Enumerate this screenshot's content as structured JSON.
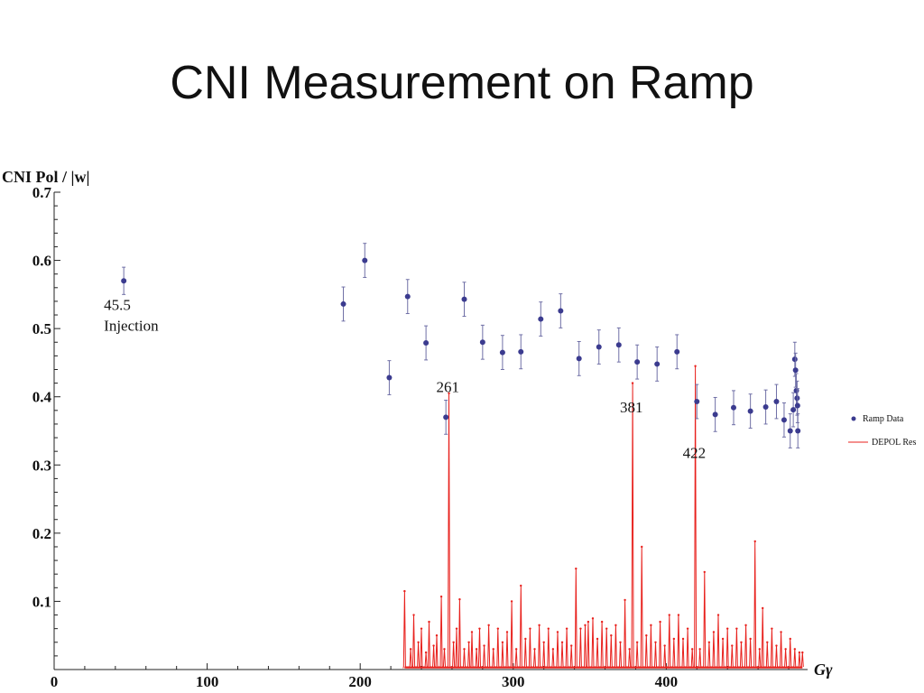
{
  "slide": {
    "title": "CNI Measurement on Ramp"
  },
  "chart_data": {
    "type": "scatter",
    "title": "CNI Measurement on Ramp",
    "ylabel": "CNI Pol / |w|",
    "xlabel": "Gγ",
    "xlim": [
      0,
      490
    ],
    "ylim": [
      0,
      0.7
    ],
    "x_ticks": [
      0,
      100,
      200,
      300,
      400
    ],
    "y_ticks": [
      0.1,
      0.2,
      0.3,
      0.4,
      0.5,
      0.6,
      0.7
    ],
    "y_tick_labels": [
      "0.1",
      "0.2",
      "0.3",
      "0.4",
      "0.5",
      "0.6",
      "0.7"
    ],
    "legend": [
      {
        "name": "Ramp Data",
        "marker": "dot",
        "color": "#3b3b8f"
      },
      {
        "name": "DEPOL Res",
        "marker": "line",
        "color": "#e8201c"
      }
    ],
    "series": [
      {
        "name": "Ramp Data",
        "color": "#3b3b8f",
        "points": [
          {
            "x": 45.5,
            "y": 0.57,
            "err": 0.02
          },
          {
            "x": 189,
            "y": 0.536,
            "err": 0.025
          },
          {
            "x": 203,
            "y": 0.6,
            "err": 0.025
          },
          {
            "x": 219,
            "y": 0.428,
            "err": 0.025
          },
          {
            "x": 231,
            "y": 0.547,
            "err": 0.025
          },
          {
            "x": 243,
            "y": 0.479,
            "err": 0.025
          },
          {
            "x": 256,
            "y": 0.37,
            "err": 0.025
          },
          {
            "x": 268,
            "y": 0.543,
            "err": 0.025
          },
          {
            "x": 280,
            "y": 0.48,
            "err": 0.025
          },
          {
            "x": 293,
            "y": 0.465,
            "err": 0.025
          },
          {
            "x": 305,
            "y": 0.466,
            "err": 0.025
          },
          {
            "x": 318,
            "y": 0.514,
            "err": 0.025
          },
          {
            "x": 331,
            "y": 0.526,
            "err": 0.025
          },
          {
            "x": 343,
            "y": 0.456,
            "err": 0.025
          },
          {
            "x": 356,
            "y": 0.473,
            "err": 0.025
          },
          {
            "x": 369,
            "y": 0.476,
            "err": 0.025
          },
          {
            "x": 381,
            "y": 0.451,
            "err": 0.025
          },
          {
            "x": 394,
            "y": 0.448,
            "err": 0.025
          },
          {
            "x": 407,
            "y": 0.466,
            "err": 0.025
          },
          {
            "x": 420,
            "y": 0.393,
            "err": 0.025
          },
          {
            "x": 432,
            "y": 0.374,
            "err": 0.025
          },
          {
            "x": 444,
            "y": 0.384,
            "err": 0.025
          },
          {
            "x": 455,
            "y": 0.379,
            "err": 0.025
          },
          {
            "x": 465,
            "y": 0.385,
            "err": 0.025
          },
          {
            "x": 472,
            "y": 0.393,
            "err": 0.025
          },
          {
            "x": 477,
            "y": 0.366,
            "err": 0.025
          },
          {
            "x": 481,
            "y": 0.35,
            "err": 0.025
          },
          {
            "x": 483,
            "y": 0.381,
            "err": 0.025
          },
          {
            "x": 484,
            "y": 0.455,
            "err": 0.025
          },
          {
            "x": 484.5,
            "y": 0.439,
            "err": 0.025
          },
          {
            "x": 485,
            "y": 0.409,
            "err": 0.025
          },
          {
            "x": 485.5,
            "y": 0.398,
            "err": 0.025
          },
          {
            "x": 485.8,
            "y": 0.387,
            "err": 0.025
          },
          {
            "x": 486,
            "y": 0.35,
            "err": 0.025
          }
        ]
      },
      {
        "name": "DEPOL Res",
        "color": "#e8201c",
        "spikes": [
          {
            "x": 229,
            "y": 0.115
          },
          {
            "x": 233,
            "y": 0.03
          },
          {
            "x": 235,
            "y": 0.08
          },
          {
            "x": 238,
            "y": 0.04
          },
          {
            "x": 240,
            "y": 0.06
          },
          {
            "x": 243,
            "y": 0.025
          },
          {
            "x": 245,
            "y": 0.07
          },
          {
            "x": 248,
            "y": 0.035
          },
          {
            "x": 250,
            "y": 0.05
          },
          {
            "x": 253,
            "y": 0.107
          },
          {
            "x": 255,
            "y": 0.03
          },
          {
            "x": 258,
            "y": 0.405
          },
          {
            "x": 261,
            "y": 0.04
          },
          {
            "x": 263,
            "y": 0.06
          },
          {
            "x": 265,
            "y": 0.103
          },
          {
            "x": 268,
            "y": 0.03
          },
          {
            "x": 271,
            "y": 0.04
          },
          {
            "x": 273,
            "y": 0.055
          },
          {
            "x": 276,
            "y": 0.03
          },
          {
            "x": 278,
            "y": 0.06
          },
          {
            "x": 281,
            "y": 0.035
          },
          {
            "x": 284,
            "y": 0.065
          },
          {
            "x": 287,
            "y": 0.03
          },
          {
            "x": 290,
            "y": 0.06
          },
          {
            "x": 293,
            "y": 0.04
          },
          {
            "x": 296,
            "y": 0.055
          },
          {
            "x": 299,
            "y": 0.1
          },
          {
            "x": 302,
            "y": 0.03
          },
          {
            "x": 305,
            "y": 0.123
          },
          {
            "x": 308,
            "y": 0.045
          },
          {
            "x": 311,
            "y": 0.06
          },
          {
            "x": 314,
            "y": 0.03
          },
          {
            "x": 317,
            "y": 0.065
          },
          {
            "x": 320,
            "y": 0.04
          },
          {
            "x": 323,
            "y": 0.06
          },
          {
            "x": 326,
            "y": 0.03
          },
          {
            "x": 329,
            "y": 0.055
          },
          {
            "x": 332,
            "y": 0.04
          },
          {
            "x": 335,
            "y": 0.06
          },
          {
            "x": 338,
            "y": 0.035
          },
          {
            "x": 341,
            "y": 0.148
          },
          {
            "x": 344,
            "y": 0.06
          },
          {
            "x": 347,
            "y": 0.065
          },
          {
            "x": 349,
            "y": 0.07
          },
          {
            "x": 352,
            "y": 0.075
          },
          {
            "x": 355,
            "y": 0.045
          },
          {
            "x": 358,
            "y": 0.07
          },
          {
            "x": 361,
            "y": 0.06
          },
          {
            "x": 364,
            "y": 0.05
          },
          {
            "x": 367,
            "y": 0.065
          },
          {
            "x": 370,
            "y": 0.04
          },
          {
            "x": 373,
            "y": 0.102
          },
          {
            "x": 376,
            "y": 0.03
          },
          {
            "x": 378,
            "y": 0.42
          },
          {
            "x": 381,
            "y": 0.04
          },
          {
            "x": 384,
            "y": 0.18
          },
          {
            "x": 387,
            "y": 0.05
          },
          {
            "x": 390,
            "y": 0.065
          },
          {
            "x": 393,
            "y": 0.04
          },
          {
            "x": 396,
            "y": 0.07
          },
          {
            "x": 399,
            "y": 0.035
          },
          {
            "x": 402,
            "y": 0.08
          },
          {
            "x": 405,
            "y": 0.045
          },
          {
            "x": 408,
            "y": 0.08
          },
          {
            "x": 411,
            "y": 0.045
          },
          {
            "x": 414,
            "y": 0.06
          },
          {
            "x": 417,
            "y": 0.03
          },
          {
            "x": 419,
            "y": 0.445
          },
          {
            "x": 422,
            "y": 0.03
          },
          {
            "x": 425,
            "y": 0.143
          },
          {
            "x": 428,
            "y": 0.04
          },
          {
            "x": 431,
            "y": 0.055
          },
          {
            "x": 434,
            "y": 0.08
          },
          {
            "x": 437,
            "y": 0.045
          },
          {
            "x": 440,
            "y": 0.06
          },
          {
            "x": 443,
            "y": 0.035
          },
          {
            "x": 446,
            "y": 0.06
          },
          {
            "x": 449,
            "y": 0.04
          },
          {
            "x": 452,
            "y": 0.065
          },
          {
            "x": 455,
            "y": 0.045
          },
          {
            "x": 458,
            "y": 0.188
          },
          {
            "x": 461,
            "y": 0.03
          },
          {
            "x": 463,
            "y": 0.09
          },
          {
            "x": 466,
            "y": 0.04
          },
          {
            "x": 469,
            "y": 0.06
          },
          {
            "x": 472,
            "y": 0.035
          },
          {
            "x": 475,
            "y": 0.055
          },
          {
            "x": 478,
            "y": 0.03
          },
          {
            "x": 481,
            "y": 0.045
          },
          {
            "x": 484,
            "y": 0.03
          },
          {
            "x": 487,
            "y": 0.025
          },
          {
            "x": 489,
            "y": 0.025
          }
        ]
      }
    ],
    "annotations": [
      {
        "text": "45.5",
        "x": 45.5,
        "y": 0.535
      },
      {
        "text": "Injection",
        "x": 45.5,
        "y": 0.505
      },
      {
        "text": "261",
        "x": 258,
        "y": 0.415
      },
      {
        "text": "381",
        "x": 378,
        "y": 0.385
      },
      {
        "text": "422",
        "x": 419,
        "y": 0.318
      }
    ]
  }
}
